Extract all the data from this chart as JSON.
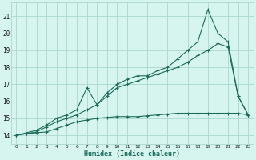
{
  "title": "",
  "xlabel": "Humidex (Indice chaleur)",
  "bg_color": "#d6f5ef",
  "grid_color": "#aad8ce",
  "line_color": "#1a6b5a",
  "xlim": [
    -0.5,
    23.5
  ],
  "ylim": [
    13.5,
    21.8
  ],
  "yticks": [
    14,
    15,
    16,
    17,
    18,
    19,
    20,
    21
  ],
  "xticks": [
    0,
    1,
    2,
    3,
    4,
    5,
    6,
    7,
    8,
    9,
    10,
    11,
    12,
    13,
    14,
    15,
    16,
    17,
    18,
    19,
    20,
    21,
    22,
    23
  ],
  "series1_x": [
    0,
    1,
    2,
    3,
    4,
    5,
    6,
    7,
    8,
    9,
    10,
    11,
    12,
    13,
    14,
    15,
    16,
    17,
    18,
    19,
    20,
    21,
    22,
    23
  ],
  "series1_y": [
    14.0,
    14.1,
    14.15,
    14.2,
    14.4,
    14.6,
    14.8,
    14.9,
    15.0,
    15.05,
    15.1,
    15.1,
    15.1,
    15.15,
    15.2,
    15.25,
    15.3,
    15.3,
    15.3,
    15.3,
    15.3,
    15.3,
    15.3,
    15.2
  ],
  "series2_x": [
    0,
    1,
    2,
    3,
    4,
    5,
    6,
    7,
    8,
    9,
    10,
    11,
    12,
    13,
    14,
    15,
    16,
    17,
    18,
    19,
    20,
    21,
    22,
    23
  ],
  "series2_y": [
    14.0,
    14.1,
    14.2,
    14.5,
    14.8,
    15.0,
    15.2,
    15.5,
    15.8,
    16.3,
    16.8,
    17.0,
    17.2,
    17.4,
    17.6,
    17.8,
    18.0,
    18.3,
    18.7,
    19.0,
    19.4,
    19.2,
    16.3,
    15.2
  ],
  "series3_x": [
    0,
    2,
    3,
    4,
    5,
    6,
    7,
    8,
    9,
    10,
    11,
    12,
    13,
    14,
    15,
    16,
    17,
    18,
    19,
    20,
    21,
    22,
    23
  ],
  "series3_y": [
    14.0,
    14.3,
    14.6,
    15.0,
    15.2,
    15.5,
    16.8,
    15.8,
    16.5,
    17.0,
    17.3,
    17.5,
    17.5,
    17.8,
    18.0,
    18.5,
    19.0,
    19.5,
    21.4,
    20.0,
    19.5,
    16.3,
    15.2
  ],
  "marker_size": 3,
  "line_width": 0.8
}
